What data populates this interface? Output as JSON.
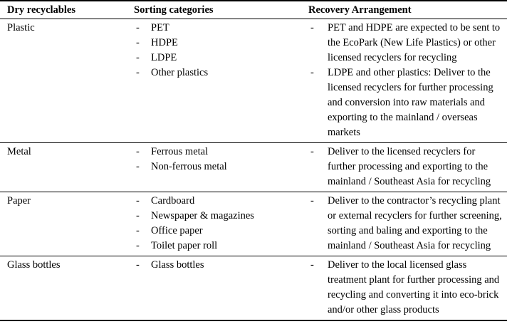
{
  "document": {
    "header": {
      "col1": "Dry recyclables",
      "col2": "Sorting categories",
      "col3": "Recovery Arrangement"
    },
    "list_marker": "-",
    "rows": [
      {
        "material": "Plastic",
        "categories": [
          "PET",
          "HDPE",
          "LDPE",
          "Other plastics"
        ],
        "recovery": [
          "PET and HDPE are expected to be sent to the EcoPark (New Life Plastics) or other licensed recyclers for recycling",
          "LDPE and other plastics: Deliver to the licensed recyclers for further processing and conversion into raw materials and exporting to the mainland / overseas markets"
        ]
      },
      {
        "material": "Metal",
        "categories": [
          "Ferrous metal",
          "Non-ferrous metal"
        ],
        "recovery": [
          "Deliver to the licensed recyclers for further processing and exporting to the mainland / Southeast Asia for recycling"
        ]
      },
      {
        "material": "Paper",
        "categories": [
          "Cardboard",
          "Newspaper & magazines",
          "Office paper",
          "Toilet paper roll"
        ],
        "recovery": [
          "Deliver to the contractor’s recycling plant or external recyclers for further screening, sorting and baling and exporting to the mainland / Southeast Asia for recycling"
        ]
      },
      {
        "material": "Glass bottles",
        "categories": [
          "Glass bottles"
        ],
        "recovery": [
          "Deliver to the local licensed glass treatment plant for further processing and recycling and converting it into eco-brick and/or other glass products"
        ]
      }
    ],
    "colors": {
      "text": "#000000",
      "background": "#ffffff",
      "rule": "#000000"
    }
  }
}
